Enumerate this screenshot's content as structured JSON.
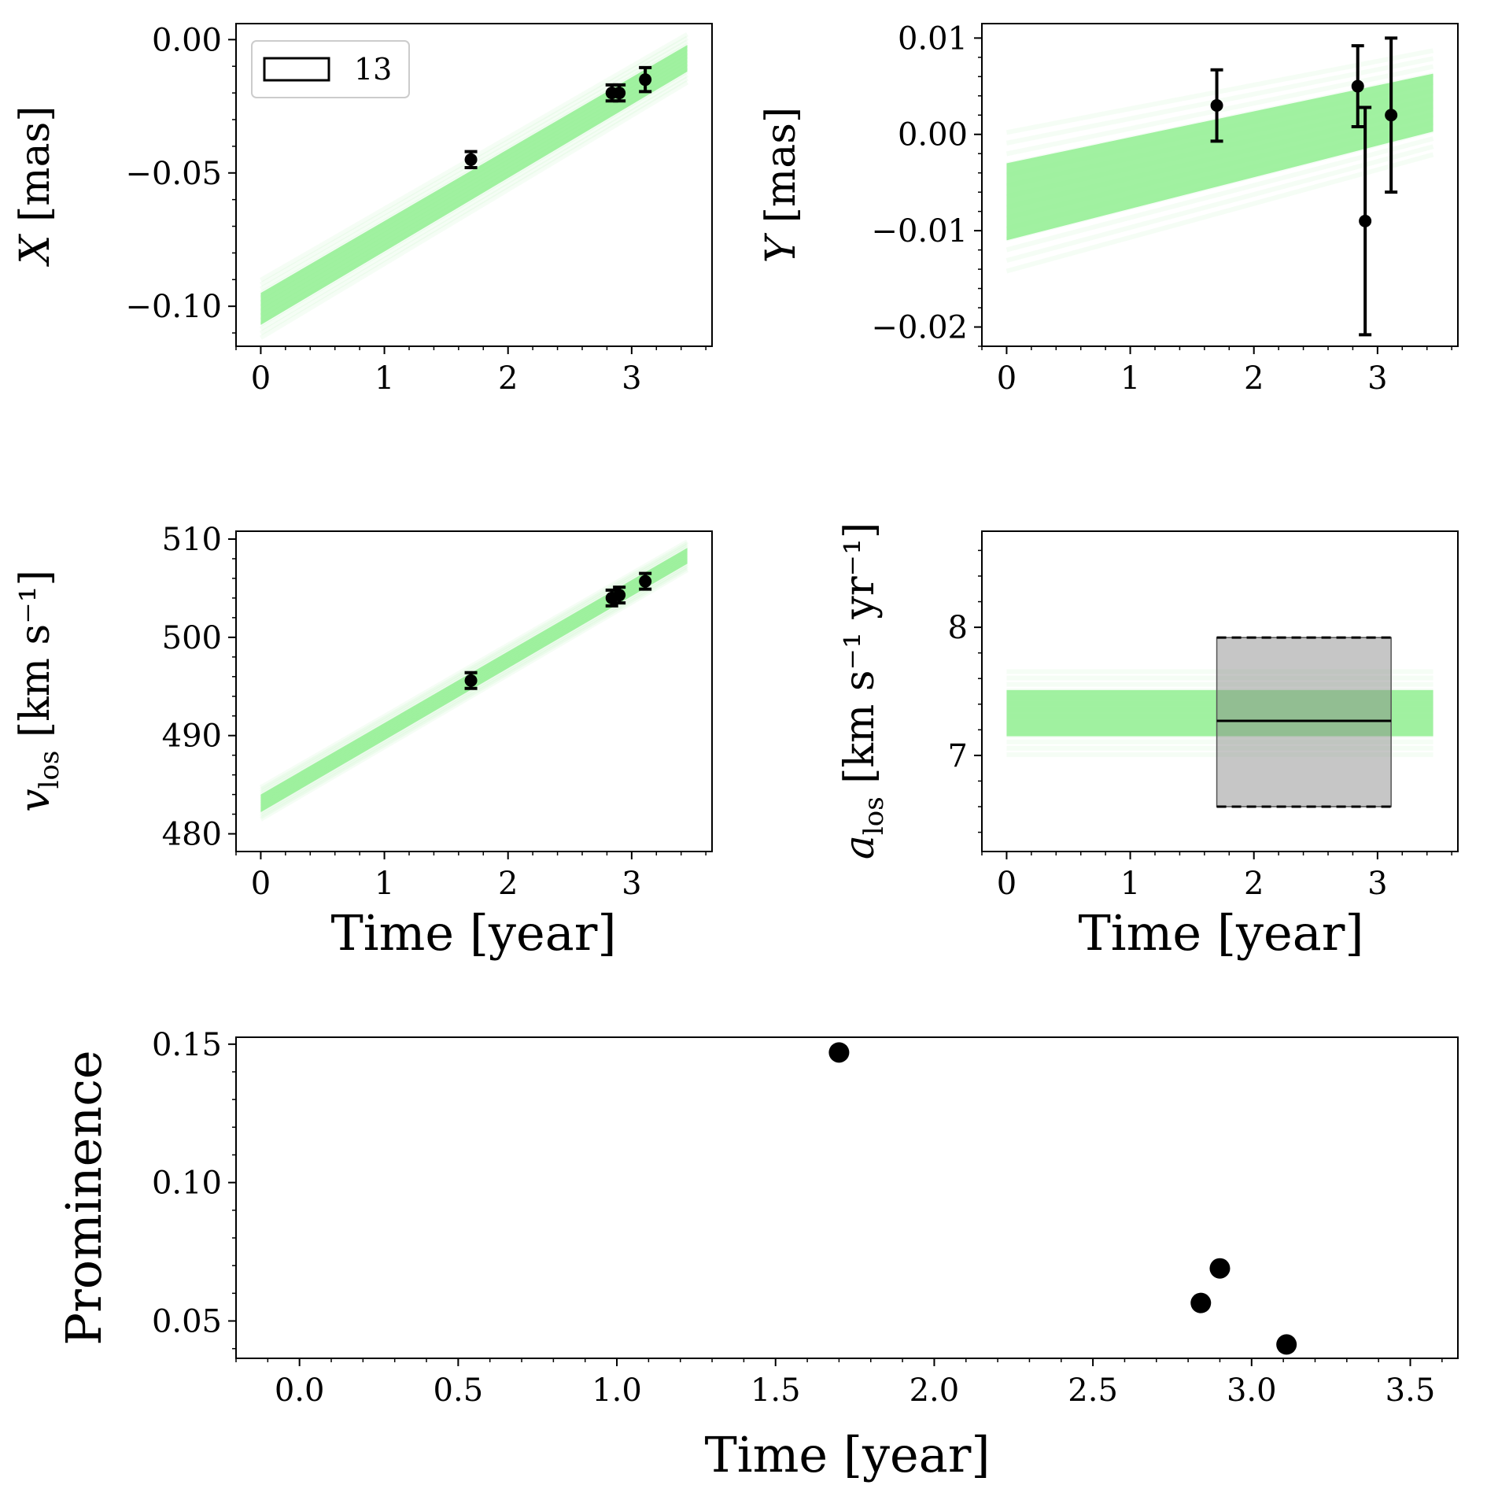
{
  "chart_data": [
    {
      "id": "x",
      "type": "line",
      "ylabel": {
        "sym": "X",
        "sub": "",
        "unit": " [mas]"
      },
      "xlim": [
        -0.2,
        3.65
      ],
      "ylim": [
        -0.115,
        0.006
      ],
      "xticks": [
        0,
        1,
        2,
        3
      ],
      "xtick_labels": [
        "0",
        "1",
        "2",
        "3"
      ],
      "yticks": [
        -0.1,
        -0.05,
        0.0
      ],
      "ytick_labels": [
        "−0.10",
        "−0.05",
        "0.00"
      ],
      "band": {
        "x": [
          0,
          3.45
        ],
        "center": [
          -0.101,
          -0.007
        ],
        "halfwidth": [
          0.006,
          0.005
        ],
        "color": "#90ee90"
      },
      "points": {
        "x": [
          1.7,
          2.84,
          2.9,
          3.11
        ],
        "y": [
          -0.045,
          -0.02,
          -0.02,
          -0.015
        ],
        "err": [
          0.003,
          0.003,
          0.003,
          0.0045
        ]
      },
      "legend": {
        "label": "13",
        "position": "upper-left"
      }
    },
    {
      "id": "y",
      "type": "line",
      "ylabel": {
        "sym": "Y",
        "sub": "",
        "unit": " [mas]"
      },
      "xlim": [
        -0.2,
        3.65
      ],
      "ylim": [
        -0.022,
        0.0115
      ],
      "xticks": [
        0,
        1,
        2,
        3
      ],
      "xtick_labels": [
        "0",
        "1",
        "2",
        "3"
      ],
      "yticks": [
        -0.02,
        -0.01,
        0.0,
        0.01
      ],
      "ytick_labels": [
        "−0.02",
        "−0.01",
        "0.00",
        "0.01"
      ],
      "band": {
        "x": [
          0,
          3.45
        ],
        "center": [
          -0.007,
          0.0033
        ],
        "halfwidth": [
          0.004,
          0.003
        ],
        "color": "#90ee90"
      },
      "points": {
        "x": [
          1.7,
          2.84,
          2.9,
          3.11
        ],
        "y": [
          0.003,
          0.005,
          -0.009,
          0.002
        ],
        "err": [
          0.0037,
          0.0042,
          0.0118,
          0.008
        ]
      }
    },
    {
      "id": "vlos",
      "type": "line",
      "ylabel": {
        "sym": "v",
        "sub": "los",
        "unit": " [km s⁻¹]"
      },
      "xlim": [
        -0.2,
        3.65
      ],
      "ylim": [
        478.2,
        510.8
      ],
      "xticks": [
        0,
        1,
        2,
        3
      ],
      "xtick_labels": [
        "0",
        "1",
        "2",
        "3"
      ],
      "yticks": [
        480,
        490,
        500,
        510
      ],
      "ytick_labels": [
        "480",
        "490",
        "500",
        "510"
      ],
      "band": {
        "x": [
          0,
          3.45
        ],
        "center": [
          483.1,
          508.3
        ],
        "halfwidth": [
          0.9,
          0.8
        ],
        "color": "#90ee90"
      },
      "points": {
        "x": [
          1.7,
          2.84,
          2.9,
          3.11
        ],
        "y": [
          495.6,
          504.0,
          504.3,
          505.7
        ],
        "err": [
          0.8,
          0.8,
          0.8,
          0.8
        ]
      }
    },
    {
      "id": "alos",
      "type": "line",
      "ylabel": {
        "sym": "a",
        "sub": "los",
        "unit": " [km s⁻¹ yr⁻¹]"
      },
      "xlim": [
        -0.2,
        3.65
      ],
      "ylim": [
        6.25,
        8.75
      ],
      "xticks": [
        0,
        1,
        2,
        3
      ],
      "xtick_labels": [
        "0",
        "1",
        "2",
        "3"
      ],
      "yticks": [
        7,
        8
      ],
      "ytick_labels": [
        "7",
        "8"
      ],
      "band": {
        "x": [
          0,
          3.45
        ],
        "center": [
          7.33,
          7.33
        ],
        "halfwidth": [
          0.18,
          0.18
        ],
        "color": "#90ee90"
      },
      "box": {
        "x": [
          1.7,
          3.11
        ],
        "y": [
          6.6,
          7.92
        ],
        "median": 7.27
      },
      "xlabel": "Time [year]"
    },
    {
      "id": "prom",
      "type": "scatter",
      "ylabel": {
        "sym": "Prominence",
        "sub": "",
        "unit": ""
      },
      "xlim": [
        -0.2,
        3.65
      ],
      "ylim": [
        0.0365,
        0.1525
      ],
      "xticks": [
        0,
        0.5,
        1,
        1.5,
        2,
        2.5,
        3,
        3.5
      ],
      "xtick_labels": [
        "0.0",
        "0.5",
        "1.0",
        "1.5",
        "2.0",
        "2.5",
        "3.0",
        "3.5"
      ],
      "yticks": [
        0.05,
        0.1,
        0.15
      ],
      "ytick_labels": [
        "0.05",
        "0.10",
        "0.15"
      ],
      "points": {
        "x": [
          1.7,
          2.84,
          2.9,
          3.11
        ],
        "y": [
          0.147,
          0.0565,
          0.069,
          0.0415
        ]
      },
      "xlabel": "Time [year]"
    }
  ],
  "xlabel_middle": "Time [year]",
  "xlabel_middle_right": "Time [year]"
}
